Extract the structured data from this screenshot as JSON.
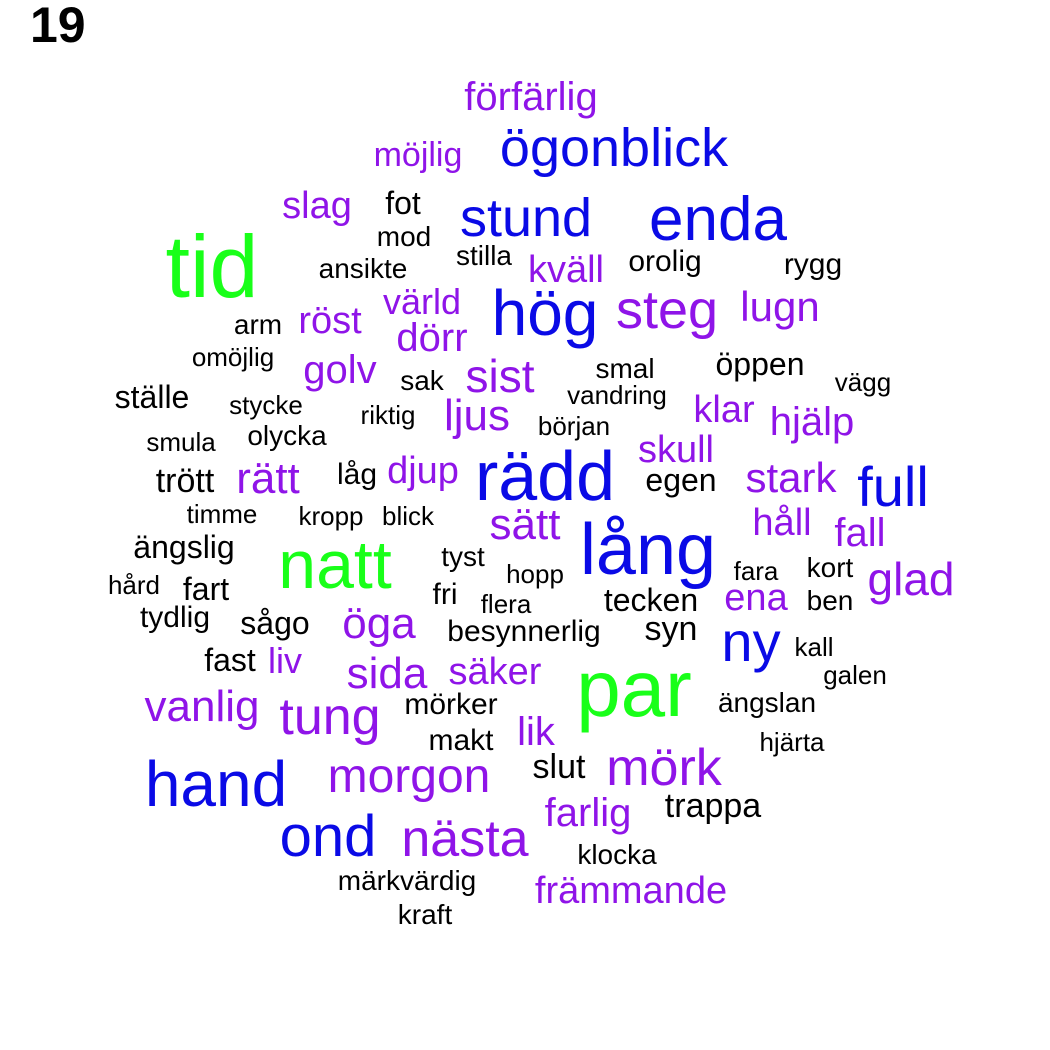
{
  "panel_label": "19",
  "colors": {
    "green": "#19FF19",
    "blue": "#0A0AE6",
    "purple": "#8F14E8",
    "black": "#000000"
  },
  "words": [
    {
      "text": "förfärlig",
      "color": "purple"
    },
    {
      "text": "möjlig",
      "color": "purple"
    },
    {
      "text": "ögonblick",
      "color": "blue"
    },
    {
      "text": "slag",
      "color": "purple"
    },
    {
      "text": "fot",
      "color": "black"
    },
    {
      "text": "stund",
      "color": "blue"
    },
    {
      "text": "enda",
      "color": "blue"
    },
    {
      "text": "tid",
      "color": "green"
    },
    {
      "text": "mod",
      "color": "black"
    },
    {
      "text": "stilla",
      "color": "black"
    },
    {
      "text": "ansikte",
      "color": "black"
    },
    {
      "text": "kväll",
      "color": "purple"
    },
    {
      "text": "orolig",
      "color": "black"
    },
    {
      "text": "rygg",
      "color": "black"
    },
    {
      "text": "värld",
      "color": "purple"
    },
    {
      "text": "hög",
      "color": "blue"
    },
    {
      "text": "steg",
      "color": "purple"
    },
    {
      "text": "lugn",
      "color": "purple"
    },
    {
      "text": "arm",
      "color": "black"
    },
    {
      "text": "röst",
      "color": "purple"
    },
    {
      "text": "dörr",
      "color": "purple"
    },
    {
      "text": "omöjlig",
      "color": "black"
    },
    {
      "text": "golv",
      "color": "purple"
    },
    {
      "text": "sist",
      "color": "purple"
    },
    {
      "text": "smal",
      "color": "black"
    },
    {
      "text": "öppen",
      "color": "black"
    },
    {
      "text": "sak",
      "color": "black"
    },
    {
      "text": "vägg",
      "color": "black"
    },
    {
      "text": "ställe",
      "color": "black"
    },
    {
      "text": "vandring",
      "color": "black"
    },
    {
      "text": "stycke",
      "color": "black"
    },
    {
      "text": "klar",
      "color": "purple"
    },
    {
      "text": "riktig",
      "color": "black"
    },
    {
      "text": "ljus",
      "color": "purple"
    },
    {
      "text": "hjälp",
      "color": "purple"
    },
    {
      "text": "början",
      "color": "black"
    },
    {
      "text": "smula",
      "color": "black"
    },
    {
      "text": "olycka",
      "color": "black"
    },
    {
      "text": "skull",
      "color": "purple"
    },
    {
      "text": "rädd",
      "color": "blue"
    },
    {
      "text": "trött",
      "color": "black"
    },
    {
      "text": "rätt",
      "color": "purple"
    },
    {
      "text": "låg",
      "color": "black"
    },
    {
      "text": "djup",
      "color": "purple"
    },
    {
      "text": "egen",
      "color": "black"
    },
    {
      "text": "stark",
      "color": "purple"
    },
    {
      "text": "full",
      "color": "blue"
    },
    {
      "text": "timme",
      "color": "black"
    },
    {
      "text": "kropp",
      "color": "black"
    },
    {
      "text": "blick",
      "color": "black"
    },
    {
      "text": "sätt",
      "color": "purple"
    },
    {
      "text": "håll",
      "color": "purple"
    },
    {
      "text": "fall",
      "color": "purple"
    },
    {
      "text": "ängslig",
      "color": "black"
    },
    {
      "text": "natt",
      "color": "green"
    },
    {
      "text": "lång",
      "color": "blue"
    },
    {
      "text": "tyst",
      "color": "black"
    },
    {
      "text": "hopp",
      "color": "black"
    },
    {
      "text": "fara",
      "color": "black"
    },
    {
      "text": "kort",
      "color": "black"
    },
    {
      "text": "glad",
      "color": "purple"
    },
    {
      "text": "hård",
      "color": "black"
    },
    {
      "text": "fart",
      "color": "black"
    },
    {
      "text": "fri",
      "color": "black"
    },
    {
      "text": "flera",
      "color": "black"
    },
    {
      "text": "tecken",
      "color": "black"
    },
    {
      "text": "ena",
      "color": "purple"
    },
    {
      "text": "ben",
      "color": "black"
    },
    {
      "text": "tydlig",
      "color": "black"
    },
    {
      "text": "sågo",
      "color": "black"
    },
    {
      "text": "öga",
      "color": "purple"
    },
    {
      "text": "besynnerlig",
      "color": "black"
    },
    {
      "text": "syn",
      "color": "black"
    },
    {
      "text": "ny",
      "color": "blue"
    },
    {
      "text": "kall",
      "color": "black"
    },
    {
      "text": "fast",
      "color": "black"
    },
    {
      "text": "liv",
      "color": "purple"
    },
    {
      "text": "sida",
      "color": "purple"
    },
    {
      "text": "säker",
      "color": "purple"
    },
    {
      "text": "par",
      "color": "green"
    },
    {
      "text": "galen",
      "color": "black"
    },
    {
      "text": "vanlig",
      "color": "purple"
    },
    {
      "text": "tung",
      "color": "purple"
    },
    {
      "text": "mörker",
      "color": "black"
    },
    {
      "text": "ängslan",
      "color": "black"
    },
    {
      "text": "lik",
      "color": "purple"
    },
    {
      "text": "makt",
      "color": "black"
    },
    {
      "text": "hjärta",
      "color": "black"
    },
    {
      "text": "hand",
      "color": "blue"
    },
    {
      "text": "morgon",
      "color": "purple"
    },
    {
      "text": "slut",
      "color": "black"
    },
    {
      "text": "mörk",
      "color": "purple"
    },
    {
      "text": "farlig",
      "color": "purple"
    },
    {
      "text": "trappa",
      "color": "black"
    },
    {
      "text": "ond",
      "color": "blue"
    },
    {
      "text": "nästa",
      "color": "purple"
    },
    {
      "text": "klocka",
      "color": "black"
    },
    {
      "text": "märkvärdig",
      "color": "black"
    },
    {
      "text": "främmande",
      "color": "purple"
    },
    {
      "text": "kraft",
      "color": "black"
    }
  ]
}
